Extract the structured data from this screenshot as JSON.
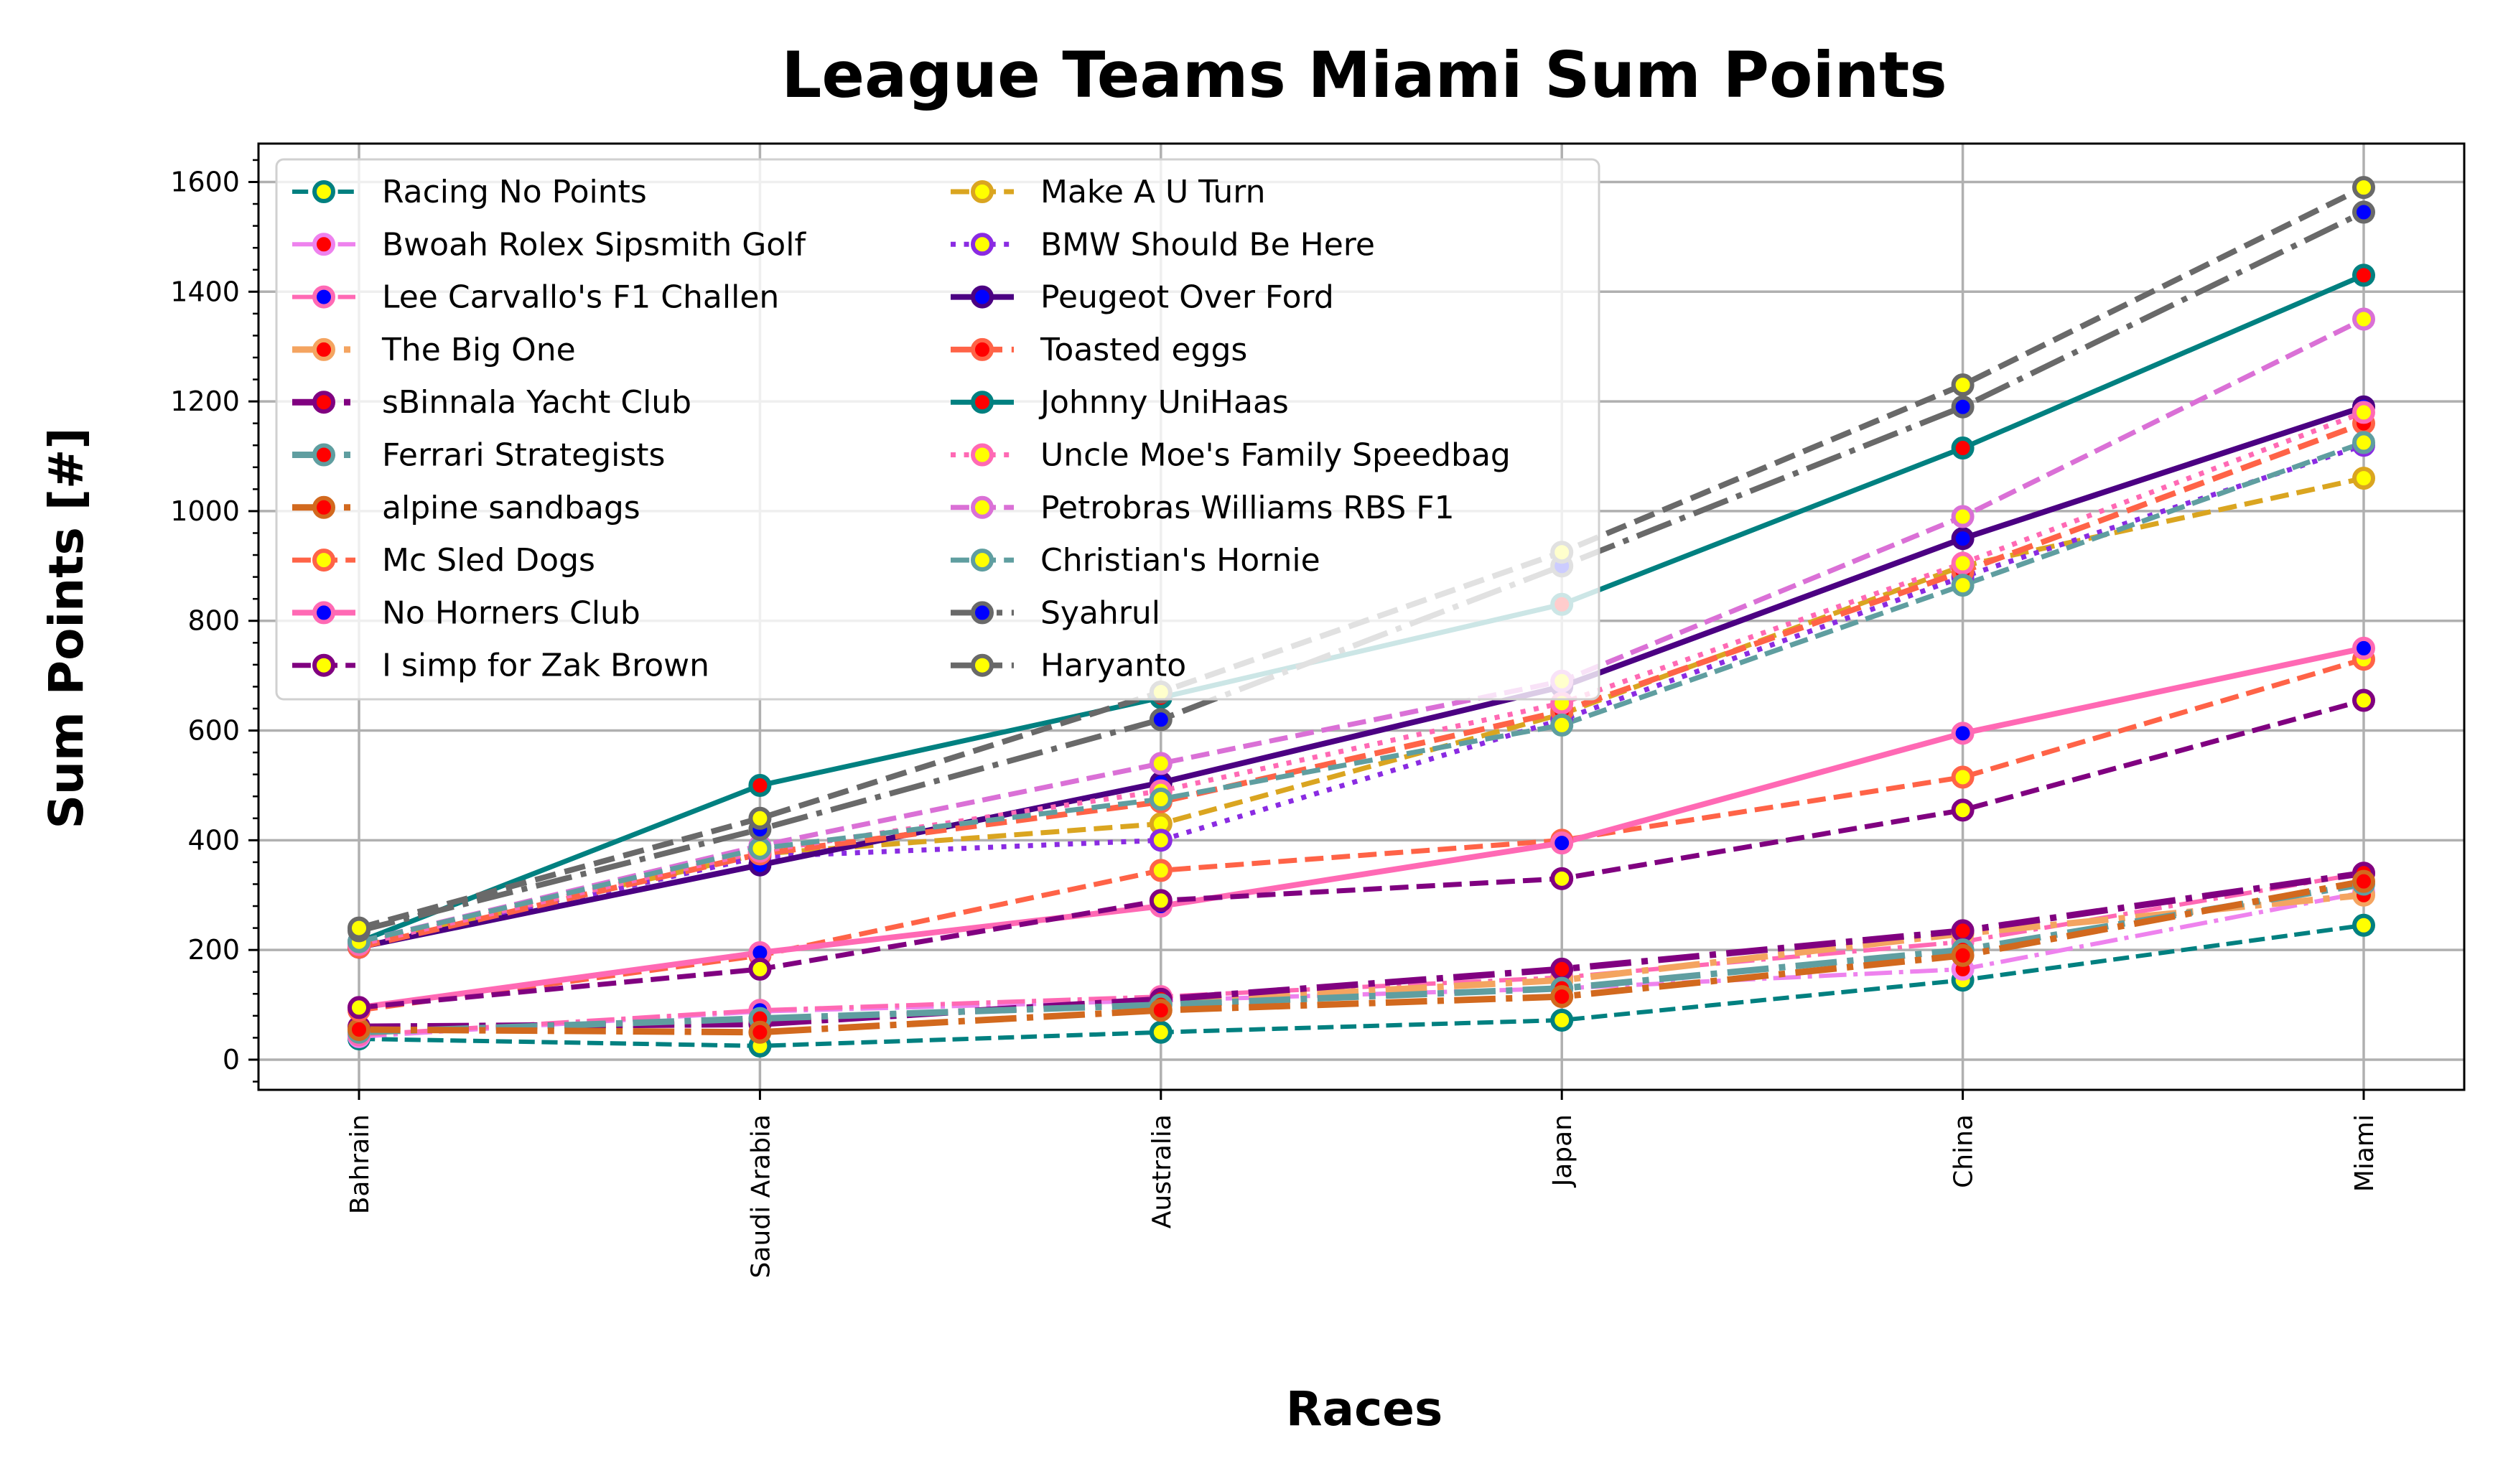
{
  "chart_data": {
    "type": "line",
    "title": "League Teams Miami Sum Points",
    "xlabel": "Races",
    "ylabel": "Sum Points [#]",
    "categories": [
      "Bahrain",
      "Saudi Arabia",
      "Australia",
      "Japan",
      "China",
      "Miami"
    ],
    "ylim": [
      -55,
      1670
    ],
    "yticks": [
      0,
      200,
      400,
      600,
      800,
      1000,
      1200,
      1400,
      1600
    ],
    "grid": true,
    "legend_position": "upper-left",
    "legend_columns": 2,
    "series": [
      {
        "name": "Racing No Points",
        "values": [
          38,
          25,
          50,
          72,
          145,
          245
        ],
        "color": "#008080",
        "dash": "dash",
        "width": 6,
        "marker_face": "#ffff00",
        "marker_edge": "#008080"
      },
      {
        "name": "Bwoah Rolex Sipsmith Golf",
        "values": [
          42,
          88,
          108,
          130,
          165,
          305
        ],
        "color": "#ee82ee",
        "dash": "dashdot",
        "width": 6,
        "marker_face": "#ff0000",
        "marker_edge": "#ee82ee"
      },
      {
        "name": "Lee Carvallo's F1 Challen",
        "values": [
          45,
          90,
          115,
          150,
          215,
          340
        ],
        "color": "#ff69b4",
        "dash": "dashdot",
        "width": 6,
        "marker_face": "#0000ff",
        "marker_edge": "#ff69b4"
      },
      {
        "name": "The Big One",
        "values": [
          55,
          70,
          105,
          145,
          230,
          300
        ],
        "color": "#f4a460",
        "dash": "dashdot",
        "width": 9,
        "marker_face": "#ff0000",
        "marker_edge": "#f4a460"
      },
      {
        "name": "sBinnala Yacht Club",
        "values": [
          60,
          65,
          110,
          165,
          235,
          340
        ],
        "color": "#800080",
        "dash": "dashdot",
        "width": 9,
        "marker_face": "#ff0000",
        "marker_edge": "#800080"
      },
      {
        "name": "Ferrari Strategists",
        "values": [
          50,
          75,
          100,
          130,
          200,
          320
        ],
        "color": "#5f9ea0",
        "dash": "dashdot",
        "width": 9,
        "marker_face": "#ff0000",
        "marker_edge": "#5f9ea0"
      },
      {
        "name": "alpine sandbags",
        "values": [
          55,
          50,
          90,
          115,
          190,
          325
        ],
        "color": "#d2691e",
        "dash": "dashdot",
        "width": 9,
        "marker_face": "#ff0000",
        "marker_edge": "#d2691e"
      },
      {
        "name": "Mc Sled Dogs",
        "values": [
          90,
          190,
          345,
          400,
          515,
          730
        ],
        "color": "#ff6347",
        "dash": "dash",
        "width": 7,
        "marker_face": "#ffff00",
        "marker_edge": "#ff6347"
      },
      {
        "name": "No Horners Club",
        "values": [
          95,
          195,
          280,
          395,
          595,
          750
        ],
        "color": "#ff69b4",
        "dash": "solid",
        "width": 8,
        "marker_face": "#0000ff",
        "marker_edge": "#ff69b4"
      },
      {
        "name": "I simp for Zak Brown",
        "values": [
          95,
          165,
          290,
          330,
          455,
          655
        ],
        "color": "#800080",
        "dash": "dash",
        "width": 7,
        "marker_face": "#ffff00",
        "marker_edge": "#800080"
      },
      {
        "name": "Make A U Turn",
        "values": [
          210,
          375,
          430,
          630,
          900,
          1060
        ],
        "color": "#daa520",
        "dash": "dash",
        "width": 7,
        "marker_face": "#ffff00",
        "marker_edge": "#daa520"
      },
      {
        "name": "BMW Should Be Here",
        "values": [
          205,
          370,
          400,
          620,
          880,
          1120
        ],
        "color": "#8a2be2",
        "dash": "dot",
        "width": 7,
        "marker_face": "#ffff00",
        "marker_edge": "#8a2be2"
      },
      {
        "name": "Peugeot Over Ford",
        "values": [
          205,
          355,
          505,
          680,
          950,
          1190
        ],
        "color": "#4b0082",
        "dash": "solid",
        "width": 8,
        "marker_face": "#0000ff",
        "marker_edge": "#4b0082"
      },
      {
        "name": "Toasted eggs",
        "values": [
          205,
          375,
          470,
          635,
          890,
          1160
        ],
        "color": "#ff6347",
        "dash": "dash",
        "width": 8,
        "marker_face": "#ff0000",
        "marker_edge": "#ff6347"
      },
      {
        "name": "Johnny UniHaas",
        "values": [
          215,
          500,
          660,
          830,
          1115,
          1430
        ],
        "color": "#008080",
        "dash": "solid",
        "width": 7,
        "marker_face": "#ff0000",
        "marker_edge": "#008080"
      },
      {
        "name": "Uncle Moe's Family Speedbag",
        "values": [
          210,
          380,
          490,
          650,
          905,
          1180
        ],
        "color": "#ff69b4",
        "dash": "dot",
        "width": 7,
        "marker_face": "#ffff00",
        "marker_edge": "#ff69b4"
      },
      {
        "name": "Petrobras Williams RBS F1",
        "values": [
          215,
          390,
          540,
          690,
          990,
          1350
        ],
        "color": "#da70d6",
        "dash": "dash",
        "width": 7,
        "marker_face": "#ffff00",
        "marker_edge": "#da70d6"
      },
      {
        "name": "Christian's Hornie",
        "values": [
          215,
          385,
          475,
          610,
          865,
          1125
        ],
        "color": "#5f9ea0",
        "dash": "dash",
        "width": 7,
        "marker_face": "#ffff00",
        "marker_edge": "#5f9ea0"
      },
      {
        "name": "Syahrul",
        "values": [
          235,
          420,
          620,
          900,
          1190,
          1545
        ],
        "color": "#696969",
        "dash": "dashdot",
        "width": 8,
        "marker_face": "#0000ff",
        "marker_edge": "#696969"
      },
      {
        "name": "Haryanto",
        "values": [
          240,
          440,
          670,
          925,
          1230,
          1590
        ],
        "color": "#696969",
        "dash": "dash",
        "width": 8,
        "marker_face": "#ffff00",
        "marker_edge": "#696969"
      }
    ]
  }
}
